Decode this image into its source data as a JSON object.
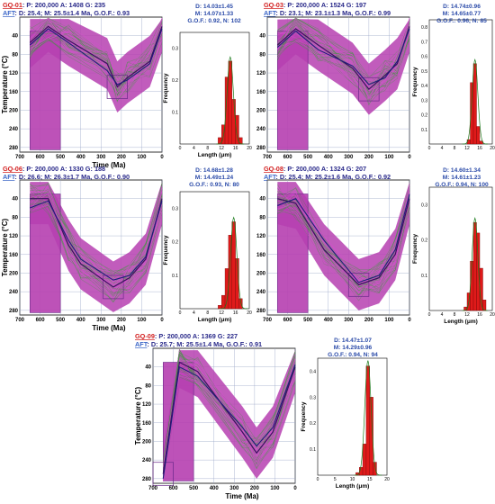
{
  "colors": {
    "envelope": "#b63fb0",
    "paths": "#3a9a3a",
    "best_path": "#3b1060",
    "bars": "#e01a1a",
    "header_sample": "#d21e1e",
    "header_aft": "#3d67c8",
    "stats_text": "#2a4aa8"
  },
  "chart_data": [
    {
      "type": "line",
      "sample_id": "GQ-01",
      "header_params": ": P: 200,000 A: 1408 G: 235",
      "aft_label": "AFT",
      "aft_stats": ": D: 25.4; M: 25.5±1.4 Ma, G.O.F.: 0.93",
      "xlabel": "Time (Ma)",
      "ylabel": "Temperature (°C)",
      "x_ticks": [
        700,
        600,
        500,
        400,
        300,
        200,
        100,
        0
      ],
      "y_ticks": [
        40,
        80,
        120,
        160,
        200,
        240,
        280
      ],
      "xlim": [
        700,
        0
      ],
      "ylim": [
        0,
        290
      ],
      "best_path": {
        "x": [
          650,
          560,
          460,
          270,
          220,
          170,
          60,
          0
        ],
        "y": [
          55,
          20,
          50,
          100,
          150,
          130,
          95,
          20
        ]
      },
      "weighted_mean_path": {
        "x": [
          650,
          560,
          460,
          270,
          220,
          170,
          60,
          0
        ],
        "y": [
          60,
          25,
          55,
          115,
          145,
          135,
          100,
          25
        ]
      },
      "histogram": {
        "xlabel": "Length (μm)",
        "ylabel": "Frequency",
        "x_ticks": [
          0,
          4,
          8,
          12,
          16,
          20
        ],
        "y_ticks": [
          0.1,
          0.2,
          0.3
        ],
        "ylim": [
          0,
          0.35
        ],
        "bins": [
          11,
          12,
          13,
          14,
          15,
          16,
          17
        ],
        "freqs": [
          0.02,
          0.06,
          0.21,
          0.26,
          0.14,
          0.09,
          0.02
        ],
        "stats": [
          "D: 14.03±1.45",
          "M: 14.07±1.33",
          "G.O.F.: 0.92, N: 102"
        ]
      }
    },
    {
      "type": "line",
      "sample_id": "GQ-03",
      "header_params": ": P: 200,000 A: 1524 G: 197",
      "aft_label": "AFT",
      "aft_stats": ": D: 23.1; M: 23.1±1.3 Ma, G.O.F.: 0.99",
      "xlabel": "",
      "ylabel": "",
      "x_ticks": [
        700,
        600,
        500,
        400,
        300,
        200,
        100,
        0
      ],
      "y_ticks": [
        40,
        80,
        120,
        160,
        200,
        240,
        280
      ],
      "xlim": [
        700,
        0
      ],
      "ylim": [
        0,
        290
      ],
      "best_path": {
        "x": [
          650,
          560,
          450,
          280,
          200,
          120,
          60,
          0
        ],
        "y": [
          60,
          25,
          60,
          110,
          155,
          125,
          100,
          20
        ]
      },
      "weighted_mean_path": {
        "x": [
          650,
          560,
          450,
          280,
          200,
          120,
          60,
          0
        ],
        "y": [
          65,
          30,
          70,
          105,
          145,
          130,
          95,
          25
        ]
      },
      "histogram": {
        "xlabel": "",
        "ylabel": "Frequency",
        "x_ticks": [
          0,
          4,
          8,
          12,
          16,
          20
        ],
        "y_ticks": [
          0.1,
          0.2,
          0.3,
          0.4,
          0.5,
          0.6,
          0.7,
          0.8
        ],
        "ylim": [
          0,
          0.85
        ],
        "bins": [
          12,
          13,
          14,
          15,
          16
        ],
        "freqs": [
          0.03,
          0.42,
          0.55,
          0.12,
          0.02
        ],
        "stats": [
          "D: 14.74±0.96",
          "M: 14.65±0.77",
          "G.O.F.: 0.96, N: 85"
        ]
      }
    },
    {
      "type": "line",
      "sample_id": "GQ-06",
      "header_params": ": P: 200,000 A: 1330 G: 188",
      "aft_label": "AFT",
      "aft_stats": ": D: 26.6; M: 26.3±1.7 Ma, G.O.F.: 0.90",
      "xlabel": "Time (Ma)",
      "ylabel": "Temperature (°C)",
      "x_ticks": [
        700,
        600,
        500,
        400,
        300,
        200,
        100,
        0
      ],
      "y_ticks": [
        40,
        80,
        120,
        160,
        200,
        240,
        280
      ],
      "xlim": [
        700,
        0
      ],
      "ylim": [
        0,
        290
      ],
      "best_path": {
        "x": [
          650,
          560,
          460,
          400,
          240,
          160,
          80,
          0
        ],
        "y": [
          40,
          40,
          140,
          180,
          230,
          210,
          170,
          40
        ]
      },
      "weighted_mean_path": {
        "x": [
          650,
          560,
          460,
          400,
          240,
          160,
          80,
          0
        ],
        "y": [
          60,
          45,
          130,
          170,
          215,
          205,
          165,
          45
        ]
      },
      "histogram": {
        "xlabel": "Length (μm)",
        "ylabel": "Frequency",
        "x_ticks": [
          0,
          4,
          8,
          12,
          16,
          20
        ],
        "y_ticks": [
          0.1,
          0.2,
          0.3
        ],
        "ylim": [
          0,
          0.35
        ],
        "bins": [
          11,
          12,
          13,
          14,
          15,
          16,
          17
        ],
        "freqs": [
          0.01,
          0.04,
          0.12,
          0.22,
          0.26,
          0.15,
          0.03
        ],
        "stats": [
          "D: 14.68±1.28",
          "M: 14.49±1.24",
          "G.O.F.: 0.93, N: 80"
        ]
      }
    },
    {
      "type": "line",
      "sample_id": "GQ-08",
      "header_params": ": P: 200,000 A: 1324 G: 207",
      "aft_label": "AFT",
      "aft_stats": ": D: 25.4; M: 25.2±1.6 Ma, G.O.F.: 0.92",
      "xlabel": "",
      "ylabel": "",
      "x_ticks": [
        700,
        600,
        500,
        400,
        300,
        200,
        100,
        0
      ],
      "y_ticks": [
        40,
        80,
        120,
        160,
        200,
        240,
        280
      ],
      "xlim": [
        700,
        0
      ],
      "ylim": [
        0,
        290
      ],
      "best_path": {
        "x": [
          650,
          560,
          420,
          250,
          150,
          70,
          0
        ],
        "y": [
          40,
          50,
          150,
          225,
          210,
          160,
          40
        ]
      },
      "weighted_mean_path": {
        "x": [
          650,
          560,
          420,
          250,
          150,
          70,
          0
        ],
        "y": [
          55,
          40,
          130,
          220,
          205,
          150,
          30
        ]
      },
      "histogram": {
        "xlabel": "Length (μm)",
        "ylabel": "Frequency",
        "x_ticks": [
          0,
          4,
          8,
          12,
          16,
          20
        ],
        "y_ticks": [
          0.1,
          0.2,
          0.3
        ],
        "ylim": [
          0,
          0.35
        ],
        "bins": [
          11,
          12,
          13,
          14,
          15,
          16,
          17
        ],
        "freqs": [
          0.01,
          0.05,
          0.14,
          0.25,
          0.22,
          0.12,
          0.03
        ],
        "stats": [
          "D: 14.60±1.34",
          "M: 14.61±1.23",
          "G.O.F.: 0.94, N: 100"
        ]
      }
    },
    {
      "type": "line",
      "sample_id": "GQ-09",
      "header_params": ": P: 200,000 A: 1369 G: 227",
      "aft_label": "AFT",
      "aft_stats": ": D: 25.7; M: 25.5±1.4 Ma, G.O.F.: 0.91",
      "xlabel": "Time (Ma)",
      "ylabel": "Temperature (°C)",
      "x_ticks": [
        700,
        600,
        500,
        400,
        300,
        200,
        100,
        0
      ],
      "y_ticks": [
        40,
        80,
        120,
        160,
        200,
        240,
        280
      ],
      "xlim": [
        700,
        0
      ],
      "ylim": [
        0,
        290
      ],
      "best_path": {
        "x": [
          650,
          570,
          480,
          260,
          190,
          110,
          0
        ],
        "y": [
          270,
          30,
          50,
          180,
          225,
          180,
          40
        ]
      },
      "weighted_mean_path": {
        "x": [
          650,
          570,
          480,
          260,
          190,
          110,
          0
        ],
        "y": [
          280,
          40,
          60,
          170,
          210,
          170,
          35
        ]
      },
      "histogram": {
        "xlabel": "Length (μm)",
        "ylabel": "Frequency",
        "x_ticks": [
          0,
          5,
          10,
          15,
          20
        ],
        "y_ticks": [
          0.1,
          0.2,
          0.3,
          0.4
        ],
        "ylim": [
          0,
          0.45
        ],
        "bins": [
          11,
          12,
          13,
          14,
          15,
          16
        ],
        "freqs": [
          0.01,
          0.03,
          0.12,
          0.42,
          0.3,
          0.05
        ],
        "stats": [
          "D: 14.47±1.07",
          "M: 14.29±0.96",
          "G.O.F.: 0.94, N: 94"
        ]
      }
    }
  ]
}
